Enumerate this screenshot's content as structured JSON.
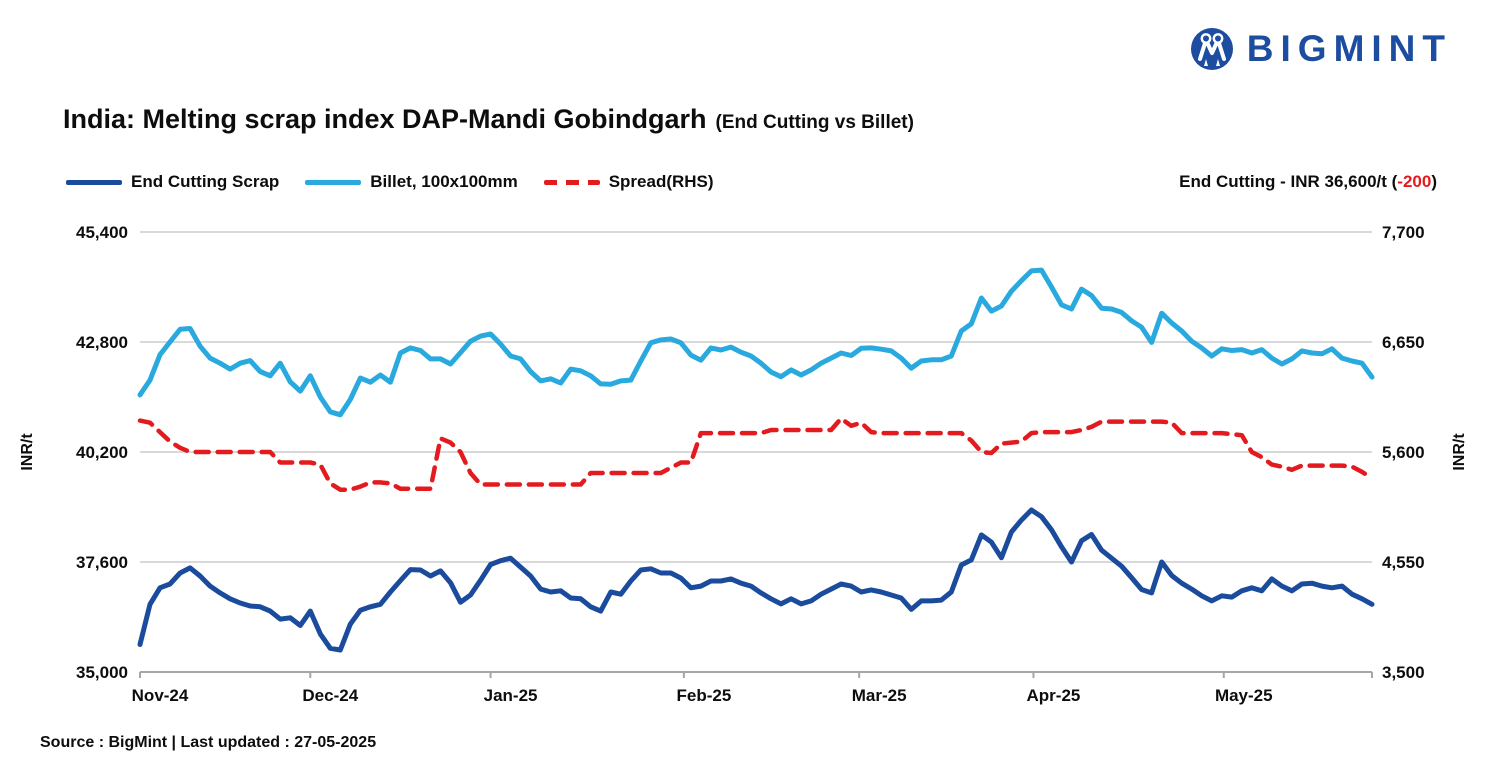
{
  "logo": {
    "brand": "BIGMINT",
    "color": "#1c4da0"
  },
  "header": {
    "title": "India: Melting scrap index DAP-Mandi Gobindgarh",
    "subtitle": "(End Cutting vs Billet)"
  },
  "legend": [
    {
      "label": "End Cutting Scrap",
      "color": "#1a4b9c",
      "style": "solid"
    },
    {
      "label": "Billet, 100x100mm",
      "color": "#29a9dd",
      "style": "solid"
    },
    {
      "label": "Spread(RHS)",
      "color": "#e31b1e",
      "style": "dashed"
    }
  ],
  "annotation": {
    "prefix": "End Cutting - INR 36,600/t (",
    "value": "-200",
    "suffix": ")",
    "value_color": "#e31b1e"
  },
  "source": "Source : BigMint | Last updated : 27-05-2025",
  "chart_data": {
    "type": "line",
    "title": "India: Melting scrap index DAP-Mandi Gobindgarh (End Cutting vs Billet)",
    "grid": true,
    "legend_position": "top-left",
    "x_axis": {
      "labels": [
        "Nov-24",
        "Dec-24",
        "Jan-25",
        "Feb-25",
        "Mar-25",
        "Apr-25",
        "May-25"
      ],
      "tick_indices": [
        0,
        17,
        35,
        54.3,
        71.8,
        89.2,
        108.2
      ],
      "end_index": 123
    },
    "left_axis": {
      "title": "INR/t",
      "ticks": [
        45400,
        42800,
        40200,
        37600,
        35000
      ],
      "tick_labels": [
        "45,400",
        "42,800",
        "40,200",
        "37,600",
        "35,000"
      ],
      "range": [
        35000,
        45400
      ]
    },
    "right_axis": {
      "title": "INR/t",
      "ticks": [
        7700,
        6650,
        5600,
        4550,
        3500
      ],
      "tick_labels": [
        "7,700",
        "6,650",
        "5,600",
        "4,550",
        "3,500"
      ],
      "range": [
        3500,
        7700
      ]
    },
    "series": [
      {
        "name": "Billet, 100x100mm",
        "axis": "left",
        "color": "#29a9dd",
        "dash": false,
        "values": [
          41550,
          41900,
          42500,
          42800,
          43100,
          43120,
          42700,
          42420,
          42300,
          42160,
          42300,
          42360,
          42100,
          42000,
          42300,
          41860,
          41640,
          42000,
          41500,
          41150,
          41080,
          41440,
          41950,
          41850,
          42020,
          41850,
          42540,
          42660,
          42600,
          42400,
          42400,
          42280,
          42550,
          42820,
          42940,
          42990,
          42750,
          42470,
          42400,
          42100,
          41880,
          41930,
          41830,
          42160,
          42120,
          42000,
          41810,
          41800,
          41880,
          41900,
          42350,
          42780,
          42850,
          42870,
          42780,
          42490,
          42370,
          42660,
          42610,
          42680,
          42560,
          42470,
          42300,
          42090,
          41980,
          42140,
          42020,
          42140,
          42300,
          42420,
          42540,
          42480,
          42650,
          42660,
          42630,
          42590,
          42420,
          42180,
          42350,
          42380,
          42380,
          42470,
          43060,
          43230,
          43840,
          43530,
          43650,
          44000,
          44250,
          44480,
          44500,
          44100,
          43680,
          43580,
          44050,
          43900,
          43600,
          43580,
          43500,
          43300,
          43150,
          42790,
          43480,
          43250,
          43060,
          42820,
          42660,
          42470,
          42640,
          42600,
          42620,
          42540,
          42620,
          42420,
          42280,
          42400,
          42590,
          42540,
          42520,
          42640,
          42420,
          42350,
          42300,
          41970
        ]
      },
      {
        "name": "End Cutting Scrap",
        "axis": "left",
        "color": "#1a4b9c",
        "dash": false,
        "values": [
          35650,
          36600,
          36990,
          37080,
          37340,
          37460,
          37270,
          37030,
          36870,
          36730,
          36630,
          36560,
          36540,
          36440,
          36250,
          36280,
          36100,
          36440,
          35900,
          35560,
          35520,
          36130,
          36460,
          36540,
          36600,
          36890,
          37160,
          37420,
          37410,
          37270,
          37390,
          37110,
          36650,
          36820,
          37170,
          37540,
          37630,
          37690,
          37480,
          37270,
          36960,
          36890,
          36920,
          36750,
          36730,
          36540,
          36440,
          36890,
          36840,
          37150,
          37410,
          37440,
          37340,
          37340,
          37220,
          36990,
          37030,
          37150,
          37150,
          37200,
          37100,
          37030,
          36870,
          36730,
          36610,
          36730,
          36610,
          36680,
          36840,
          36960,
          37080,
          37030,
          36890,
          36940,
          36890,
          36820,
          36750,
          36480,
          36680,
          36680,
          36700,
          36890,
          37530,
          37650,
          38240,
          38070,
          37700,
          38310,
          38590,
          38830,
          38670,
          38360,
          37960,
          37600,
          38100,
          38250,
          37880,
          37690,
          37500,
          37230,
          36950,
          36870,
          37600,
          37280,
          37100,
          36960,
          36800,
          36680,
          36800,
          36770,
          36920,
          36990,
          36920,
          37200,
          37030,
          36920,
          37080,
          37100,
          37030,
          36990,
          37030,
          36840,
          36730,
          36600
        ]
      },
      {
        "name": "Spread(RHS)",
        "axis": "right",
        "color": "#e31b1e",
        "dash": true,
        "values": [
          5900,
          5880,
          5790,
          5700,
          5640,
          5600,
          5600,
          5600,
          5600,
          5600,
          5600,
          5600,
          5600,
          5600,
          5500,
          5500,
          5500,
          5500,
          5480,
          5300,
          5240,
          5240,
          5270,
          5310,
          5310,
          5300,
          5250,
          5250,
          5250,
          5250,
          5730,
          5690,
          5600,
          5400,
          5290,
          5290,
          5290,
          5290,
          5290,
          5290,
          5290,
          5290,
          5290,
          5290,
          5290,
          5400,
          5400,
          5400,
          5400,
          5400,
          5400,
          5400,
          5400,
          5450,
          5500,
          5500,
          5780,
          5780,
          5780,
          5780,
          5780,
          5780,
          5780,
          5810,
          5810,
          5810,
          5810,
          5810,
          5810,
          5810,
          5920,
          5850,
          5880,
          5790,
          5780,
          5780,
          5780,
          5780,
          5780,
          5780,
          5780,
          5780,
          5780,
          5710,
          5600,
          5590,
          5680,
          5690,
          5700,
          5780,
          5790,
          5790,
          5790,
          5790,
          5810,
          5840,
          5890,
          5890,
          5890,
          5890,
          5890,
          5890,
          5890,
          5880,
          5780,
          5780,
          5780,
          5780,
          5780,
          5770,
          5760,
          5600,
          5550,
          5480,
          5460,
          5430,
          5470,
          5470,
          5470,
          5470,
          5470,
          5460,
          5410,
          5350
        ]
      }
    ]
  }
}
